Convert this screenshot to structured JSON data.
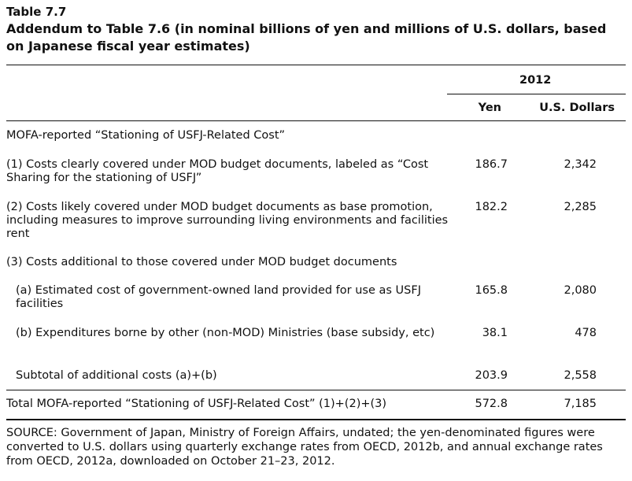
{
  "table": {
    "label": "Table 7.7",
    "title": "Addendum to Table 7.6 (in nominal billions of yen and millions of U.S. dollars, based on Japanese fiscal year estimates)",
    "year_header": "2012",
    "col_yen": "Yen",
    "col_usd": "U.S. Dollars"
  },
  "rows": {
    "section": "MOFA-reported “Stationing of USFJ-Related Cost”",
    "r1": {
      "label": "(1) Costs clearly covered under MOD budget documents, labeled as “Cost Sharing for the stationing of USFJ”",
      "yen": "186.7",
      "usd": "2,342"
    },
    "r2": {
      "label": "(2) Costs likely covered under MOD budget documents as base promotion, including measures to improve surrounding living environments and facilities rent",
      "yen": "182.2",
      "usd": "2,285"
    },
    "r3": {
      "label": "(3) Costs additional to those covered under MOD budget documents"
    },
    "ra": {
      "label": "(a) Estimated cost of government-owned land provided for use as USFJ facilities",
      "yen": "165.8",
      "usd": "2,080"
    },
    "rb": {
      "label": "(b) Expenditures borne by other (non-MOD) Ministries (base subsidy, etc)",
      "yen": "38.1",
      "usd": "478"
    },
    "sub": {
      "label": "Subtotal of additional costs (a)+(b)",
      "yen": "203.9",
      "usd": "2,558"
    },
    "total": {
      "label": "Total MOFA-reported “Stationing of USFJ-Related Cost” (1)+(2)+(3)",
      "yen": "572.8",
      "usd": "7,185"
    }
  },
  "source": "SOURCE: Government of Japan, Ministry of Foreign Affairs, undated; the yen-denominated figures were converted to U.S. dollars using quarterly exchange rates from OECD, 2012b, and annual exchange rates from OECD, 2012a, downloaded on October 21–23, 2012."
}
